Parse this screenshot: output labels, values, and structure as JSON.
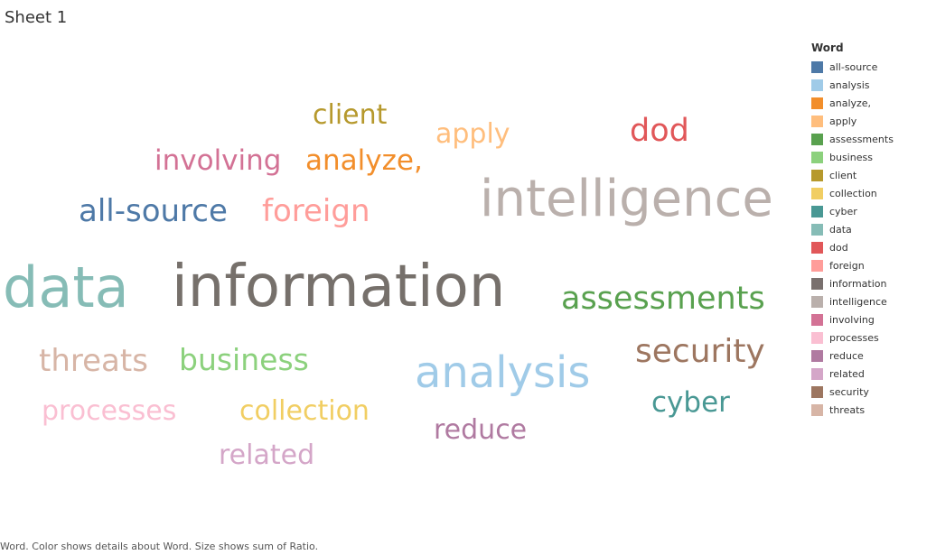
{
  "sheet": {
    "title": "Sheet 1"
  },
  "caption": "Word.  Color shows details about Word.  Size shows sum of Ratio.",
  "chart_data": {
    "type": "wordcloud",
    "color_field": "Word",
    "size_field": "sum of Ratio",
    "words": [
      {
        "text": "information",
        "ratio": 100,
        "color": "#76706b"
      },
      {
        "text": "data",
        "ratio": 85,
        "color": "#86bcb6"
      },
      {
        "text": "intelligence",
        "ratio": 80,
        "color": "#bab0ac"
      },
      {
        "text": "analysis",
        "ratio": 62,
        "color": "#a0cbe8"
      },
      {
        "text": "security",
        "ratio": 50,
        "color": "#9d7660"
      },
      {
        "text": "assessments",
        "ratio": 48,
        "color": "#59a14f"
      },
      {
        "text": "dod",
        "ratio": 46,
        "color": "#e15759"
      },
      {
        "text": "all-source",
        "ratio": 45,
        "color": "#4e79a7"
      },
      {
        "text": "foreign",
        "ratio": 45,
        "color": "#ff9d9a"
      },
      {
        "text": "threats",
        "ratio": 44,
        "color": "#d7b5a6"
      },
      {
        "text": "business",
        "ratio": 43,
        "color": "#8cd17d"
      },
      {
        "text": "analyze,",
        "ratio": 40,
        "color": "#f28e2b"
      },
      {
        "text": "involving",
        "ratio": 40,
        "color": "#d37295"
      },
      {
        "text": "cyber",
        "ratio": 40,
        "color": "#499894"
      },
      {
        "text": "client",
        "ratio": 39,
        "color": "#b6992d"
      },
      {
        "text": "apply",
        "ratio": 39,
        "color": "#ffbe7d"
      },
      {
        "text": "collection",
        "ratio": 39,
        "color": "#f1ce63"
      },
      {
        "text": "processes",
        "ratio": 39,
        "color": "#fabfd2"
      },
      {
        "text": "related",
        "ratio": 39,
        "color": "#d4a6c8"
      },
      {
        "text": "reduce",
        "ratio": 38,
        "color": "#b07aa1"
      }
    ],
    "legend": {
      "title": "Word",
      "placement": "right",
      "items": [
        {
          "label": "all-source",
          "color": "#4e79a7"
        },
        {
          "label": "analysis",
          "color": "#a0cbe8"
        },
        {
          "label": "analyze,",
          "color": "#f28e2b"
        },
        {
          "label": "apply",
          "color": "#ffbe7d"
        },
        {
          "label": "assessments",
          "color": "#59a14f"
        },
        {
          "label": "business",
          "color": "#8cd17d"
        },
        {
          "label": "client",
          "color": "#b6992d"
        },
        {
          "label": "collection",
          "color": "#f1ce63"
        },
        {
          "label": "cyber",
          "color": "#499894"
        },
        {
          "label": "data",
          "color": "#86bcb6"
        },
        {
          "label": "dod",
          "color": "#e15759"
        },
        {
          "label": "foreign",
          "color": "#ff9d9a"
        },
        {
          "label": "information",
          "color": "#79706e"
        },
        {
          "label": "intelligence",
          "color": "#bab0ac"
        },
        {
          "label": "involving",
          "color": "#d37295"
        },
        {
          "label": "processes",
          "color": "#fabfd2"
        },
        {
          "label": "reduce",
          "color": "#b07aa1"
        },
        {
          "label": "related",
          "color": "#d4a6c8"
        },
        {
          "label": "security",
          "color": "#9d7660"
        },
        {
          "label": "threats",
          "color": "#d7b5a6"
        }
      ]
    }
  }
}
